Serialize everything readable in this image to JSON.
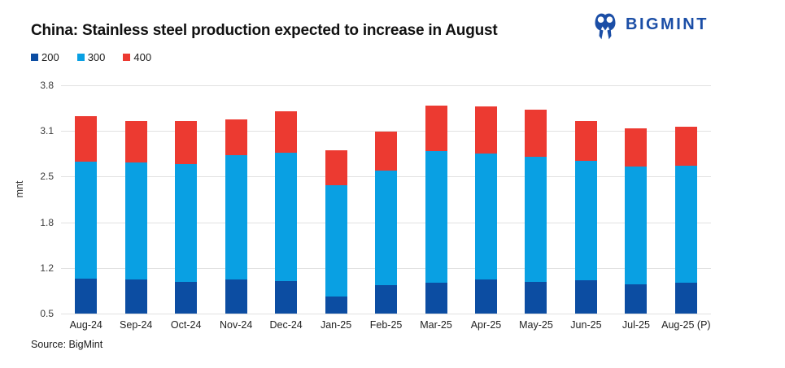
{
  "header": {
    "title": "China: Stainless steel production expected to increase in August",
    "logo": {
      "text": "BIGMINT",
      "icon": "bigmint-owl-m-icon",
      "color": "#1b4ea6"
    }
  },
  "footer": {
    "source": "Source: BigMint"
  },
  "colors": {
    "background": "#ffffff",
    "grid": "#e1e1e1",
    "axis_text": "#3d3d3d",
    "title_text": "#111111",
    "series_200": "#0c4da2",
    "series_300": "#09a0e3",
    "series_400": "#ec3a31",
    "logo_blue": "#1b4ea6"
  },
  "chart_data": {
    "type": "bar",
    "stacked": true,
    "title": "China: Stainless steel production expected to increase in August",
    "xlabel": "",
    "ylabel": "mnt",
    "units": "mnt",
    "ylim": [
      0.5,
      3.8
    ],
    "yticks": [
      3.8,
      3.1,
      2.5,
      1.8,
      1.2,
      0.5
    ],
    "grid": true,
    "legend_position": "top-left",
    "categories": [
      "Aug-24",
      "Sep-24",
      "Oct-24",
      "Nov-24",
      "Dec-24",
      "Jan-25",
      "Feb-25",
      "Mar-25",
      "Apr-25",
      "May-25",
      "Jun-25",
      "Jul-25",
      "Aug-25 (P)"
    ],
    "series": [
      {
        "name": "200",
        "color": "#0c4da2",
        "values": [
          1.0,
          0.99,
          0.96,
          0.99,
          0.97,
          0.75,
          0.91,
          0.95,
          0.99,
          0.96,
          0.98,
          0.92,
          0.95
        ]
      },
      {
        "name": "300",
        "color": "#09a0e3",
        "values": [
          1.7,
          1.69,
          1.7,
          1.8,
          1.85,
          1.6,
          1.66,
          1.9,
          1.82,
          1.81,
          1.73,
          1.71,
          1.69
        ]
      },
      {
        "name": "400",
        "color": "#ec3a31",
        "values": [
          0.65,
          0.6,
          0.62,
          0.52,
          0.61,
          0.51,
          0.56,
          0.66,
          0.69,
          0.68,
          0.57,
          0.55,
          0.56
        ]
      }
    ],
    "totals": [
      3.35,
      3.28,
      3.28,
      3.31,
      3.43,
      2.86,
      3.13,
      3.51,
      3.5,
      3.45,
      3.28,
      3.18,
      3.2
    ]
  }
}
